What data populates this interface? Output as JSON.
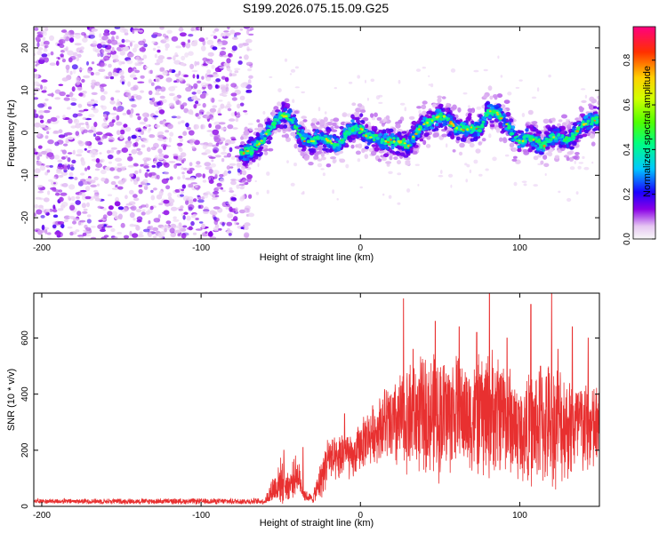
{
  "title": "S199.2026.075.15.09.G25",
  "chart_data": [
    {
      "type": "heatmap",
      "xlabel": "Height of straight line (km)",
      "ylabel": "Frequency (Hz)",
      "xlim": [
        -205,
        150
      ],
      "ylim": [
        -25,
        25
      ],
      "xticks": [
        -200,
        -100,
        0,
        100
      ],
      "yticks": [
        -20,
        -10,
        0,
        10,
        20
      ],
      "noise_region_x": [
        -205,
        -68
      ],
      "ridge": {
        "x": [
          -75,
          -68,
          -62,
          -56,
          -50,
          -45,
          -40,
          -35,
          -30,
          -25,
          -20,
          -15,
          -10,
          -5,
          0,
          5,
          10,
          15,
          20,
          25,
          30,
          35,
          40,
          45,
          50,
          55,
          60,
          65,
          70,
          75,
          80,
          85,
          90,
          95,
          100,
          105,
          110,
          115,
          120,
          125,
          130,
          135,
          140,
          145,
          150
        ],
        "frequency": [
          -5,
          -4,
          -2,
          1,
          4,
          4,
          1,
          -2,
          -2,
          -1,
          -2,
          -3,
          -1,
          1,
          1,
          -1,
          -1,
          -2,
          -2,
          -2,
          -3,
          0,
          2,
          3,
          4,
          3,
          1,
          1,
          1,
          1,
          5,
          5,
          3,
          0,
          -2,
          -1,
          -2,
          -3,
          -1,
          -1,
          -2,
          0,
          2,
          3,
          3
        ]
      },
      "colorbar": {
        "label": "Normalized spectral amplitude",
        "range": [
          0.0,
          0.95
        ],
        "ticks": [
          0.0,
          0.2,
          0.4,
          0.6,
          0.8
        ],
        "tick_labels": [
          "0.0",
          "0.2",
          "0.4",
          "0.6",
          "0.8"
        ]
      }
    },
    {
      "type": "line",
      "xlabel": "Height of straight line (km)",
      "ylabel": "SNR (10 * v/v)",
      "xlim": [
        -205,
        150
      ],
      "ylim": [
        0,
        760
      ],
      "xticks": [
        -200,
        -100,
        0,
        100
      ],
      "yticks": [
        0,
        200,
        400,
        600
      ],
      "color": "#e83030",
      "envelope": {
        "x": [
          -205,
          -60,
          -55,
          -50,
          -45,
          -40,
          -35,
          -30,
          -25,
          -20,
          -15,
          -10,
          -5,
          0,
          5,
          10,
          15,
          20,
          25,
          30,
          40,
          50,
          60,
          70,
          80,
          90,
          100,
          110,
          120,
          130,
          140,
          150
        ],
        "mean": [
          18,
          18,
          60,
          90,
          70,
          120,
          40,
          25,
          90,
          180,
          150,
          200,
          160,
          220,
          250,
          270,
          300,
          280,
          300,
          320,
          330,
          320,
          340,
          310,
          330,
          340,
          260,
          280,
          300,
          290,
          280,
          270
        ],
        "spread": [
          10,
          12,
          60,
          90,
          60,
          80,
          25,
          15,
          80,
          100,
          90,
          110,
          80,
          100,
          110,
          120,
          150,
          180,
          200,
          220,
          230,
          250,
          230,
          220,
          260,
          230,
          200,
          230,
          250,
          220,
          200,
          180
        ]
      },
      "peaks": [
        {
          "x": 27,
          "y": 740
        },
        {
          "x": 33,
          "y": 560
        },
        {
          "x": 47,
          "y": 660
        },
        {
          "x": 62,
          "y": 640
        },
        {
          "x": 73,
          "y": 620
        },
        {
          "x": 81,
          "y": 760
        },
        {
          "x": 92,
          "y": 600
        },
        {
          "x": 107,
          "y": 720
        },
        {
          "x": 113,
          "y": 500
        },
        {
          "x": 120,
          "y": 760
        },
        {
          "x": 124,
          "y": 560
        },
        {
          "x": 133,
          "y": 640
        },
        {
          "x": 143,
          "y": 600
        },
        {
          "x": -36,
          "y": 210
        },
        {
          "x": -48,
          "y": 200
        },
        {
          "x": -10,
          "y": 330
        }
      ]
    }
  ]
}
